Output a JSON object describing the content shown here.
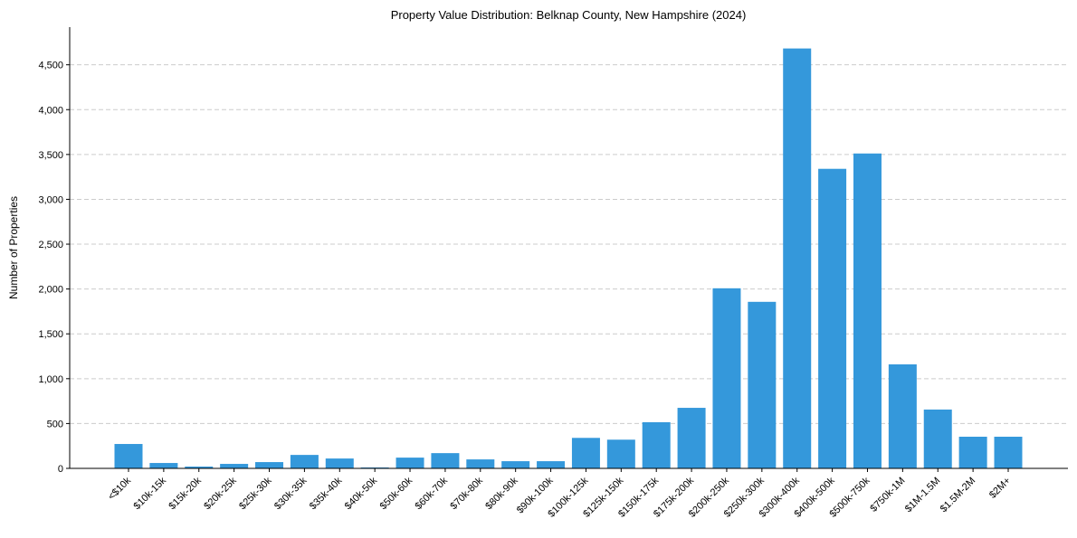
{
  "chart_data": {
    "type": "bar",
    "title": "Property Value Distribution: Belknap County, New Hampshire (2024)",
    "xlabel": "",
    "ylabel": "Number of Properties",
    "ylim": [
      0,
      4920
    ],
    "yticks": [
      0,
      500,
      1000,
      1500,
      2000,
      2500,
      3000,
      3500,
      4000,
      4500
    ],
    "ytick_labels": [
      "0",
      "500",
      "1,000",
      "1,500",
      "2,000",
      "2,500",
      "3,000",
      "3,500",
      "4,000",
      "4,500"
    ],
    "grid": "y dashed",
    "bar_color": "#3498db",
    "categories": [
      "<$10k",
      "$10k-15k",
      "$15k-20k",
      "$20k-25k",
      "$25k-30k",
      "$30k-35k",
      "$35k-40k",
      "$40k-50k",
      "$50k-60k",
      "$60k-70k",
      "$70k-80k",
      "$80k-90k",
      "$90k-100k",
      "$100k-125k",
      "$125k-150k",
      "$150k-175k",
      "$175k-200k",
      "$200k-250k",
      "$250k-300k",
      "$300k-400k",
      "$400k-500k",
      "$500k-750k",
      "$750k-1M",
      "$1M-1.5M",
      "$1.5M-2M",
      "$2M+"
    ],
    "values": [
      272,
      60,
      20,
      50,
      70,
      150,
      110,
      10,
      120,
      170,
      100,
      80,
      80,
      340,
      320,
      515,
      675,
      2008,
      1857,
      4682,
      3340,
      3511,
      1160,
      656,
      353,
      353
    ]
  }
}
